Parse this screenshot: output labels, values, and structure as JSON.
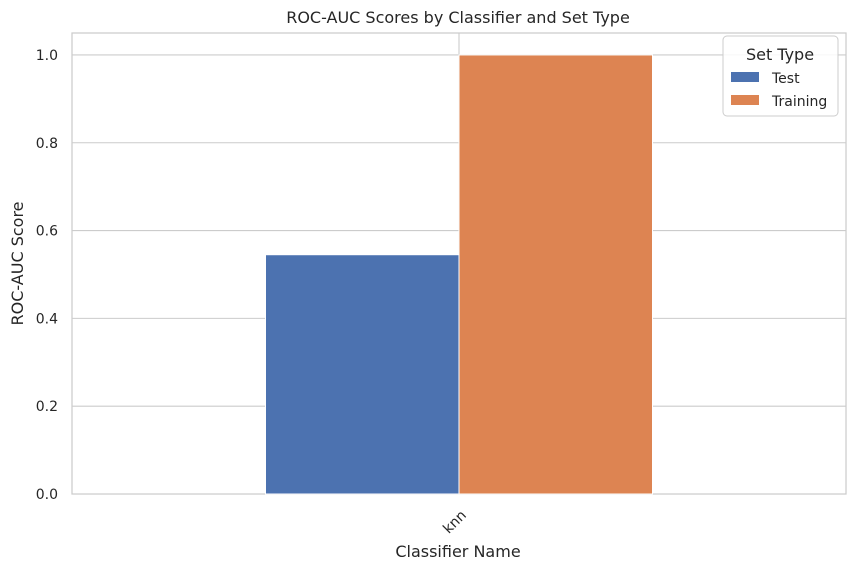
{
  "chart_data": {
    "type": "bar",
    "title": "ROC-AUC Scores by Classifier and Set Type",
    "xlabel": "Classifier Name",
    "ylabel": "ROC-AUC Score",
    "categories": [
      "knn"
    ],
    "series": [
      {
        "name": "Test",
        "values": [
          0.545
        ],
        "color": "#4c72b0"
      },
      {
        "name": "Training",
        "values": [
          1.0
        ],
        "color": "#dd8452"
      }
    ],
    "ylim": [
      0,
      1.05
    ],
    "yticks": [
      "0.0",
      "0.2",
      "0.4",
      "0.6",
      "0.8",
      "1.0"
    ],
    "grid": true,
    "legend": {
      "title": "Set Type",
      "position": "top-right"
    }
  }
}
